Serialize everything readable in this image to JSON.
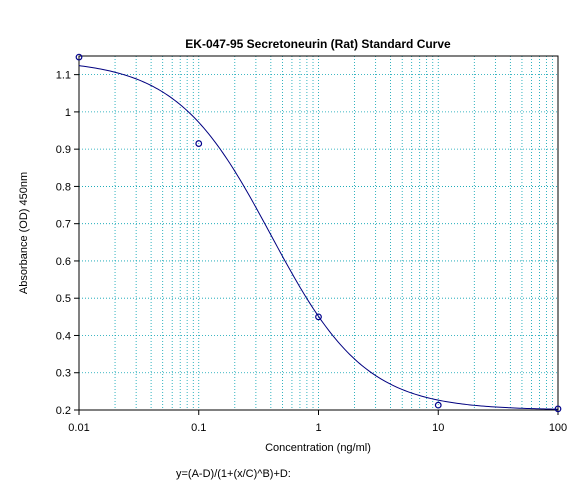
{
  "chart_data": {
    "type": "scatter",
    "title": "EK-047-95 Secretoneurin (Rat) Standard Curve",
    "xlabel": "Concentration (ng/ml)",
    "ylabel": "Absorbance (OD) 450nm",
    "equation": "y=(A-D)/(1+(x/C)^B)+D:",
    "x_scale": "log",
    "xlim": [
      0.01,
      100
    ],
    "ylim": [
      0.2,
      1.15
    ],
    "x_ticks": [
      {
        "value": 0.01,
        "label": "0.01"
      },
      {
        "value": 0.1,
        "label": "0.1"
      },
      {
        "value": 1,
        "label": "1"
      },
      {
        "value": 10,
        "label": "10"
      },
      {
        "value": 100,
        "label": "100"
      }
    ],
    "y_ticks": [
      {
        "value": 0.2,
        "label": "0.2"
      },
      {
        "value": 0.3,
        "label": "0.3"
      },
      {
        "value": 0.4,
        "label": "0.4"
      },
      {
        "value": 0.5,
        "label": "0.5"
      },
      {
        "value": 0.6,
        "label": "0.6"
      },
      {
        "value": 0.7,
        "label": "0.7"
      },
      {
        "value": 0.8,
        "label": "0.8"
      },
      {
        "value": 0.9,
        "label": "0.9"
      },
      {
        "value": 1.0,
        "label": "1"
      },
      {
        "value": 1.1,
        "label": "1.1"
      }
    ],
    "grid": true,
    "points": [
      {
        "x": 0.01,
        "y": 1.147
      },
      {
        "x": 0.1,
        "y": 0.915
      },
      {
        "x": 1,
        "y": 0.45
      },
      {
        "x": 10,
        "y": 0.213
      },
      {
        "x": 100,
        "y": 0.203
      }
    ],
    "fit": {
      "A": 1.14,
      "B": 1.1,
      "C": 0.4,
      "D": 0.2
    },
    "colors": {
      "curve": "#000080",
      "marker": "#00008b",
      "grid": "#00a0b0",
      "axis": "#000000"
    }
  }
}
